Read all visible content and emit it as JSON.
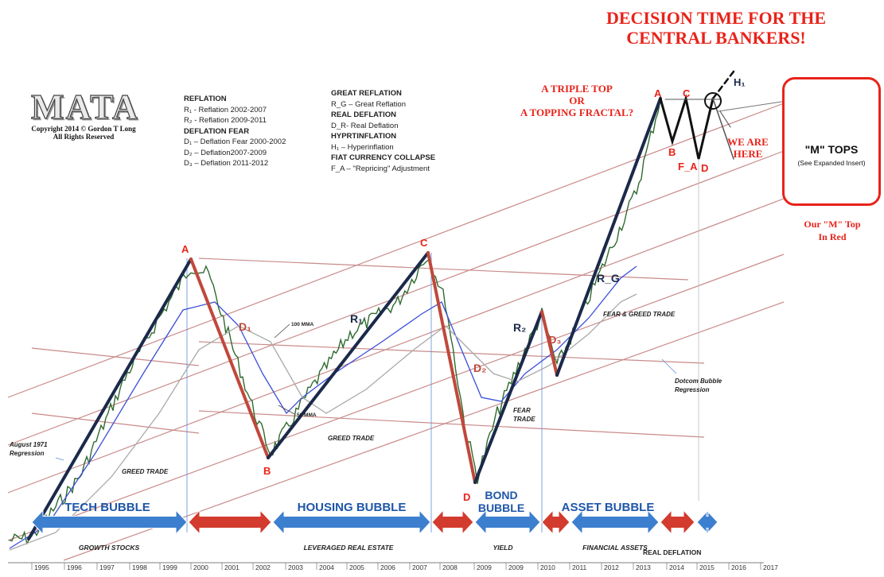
{
  "title": {
    "line1": "DECISION TIME FOR THE",
    "line2": "CENTRAL BANKERS!"
  },
  "logo": {
    "text": "MATA",
    "copyright_line1": "Copyright 2014 © Gordon T Long",
    "copyright_line2": "All Rights Reserved"
  },
  "legend_left": [
    {
      "text": "REFLATION",
      "bold": true
    },
    {
      "text": "R₁ - Reflation 2002-2007",
      "bold": false
    },
    {
      "text": "R₂ - Reflation 2009-2011",
      "bold": false
    },
    {
      "text": "DEFLATION FEAR",
      "bold": true
    },
    {
      "text": "D₁ – Deflation Fear 2000-2002",
      "bold": false
    },
    {
      "text": "D₂ – Deflation2007-2009",
      "bold": false
    },
    {
      "text": "D₃ – Deflation 2011-2012",
      "bold": false
    }
  ],
  "legend_right": [
    {
      "text": "GREAT REFLATION",
      "bold": true
    },
    {
      "text": "R_G – Great Reflation",
      "bold": false
    },
    {
      "text": "REAL DEFLATION",
      "bold": true
    },
    {
      "text": "D_R- Real Deflation",
      "bold": false
    },
    {
      "text": "HYPRTINFLATION",
      "bold": true
    },
    {
      "text": "H₁ – Hyperinflation",
      "bold": false
    },
    {
      "text": "FIAT CURRENCY COLLAPSE",
      "bold": true
    },
    {
      "text": "F_A – \"Repricing\" Adjustment",
      "bold": false
    }
  ],
  "notes": {
    "triple_top_1": "A TRIPLE TOP",
    "triple_top_2": "OR",
    "triple_top_3": "A TOPPING FRACTAL?",
    "we_are_1": "WE ARE",
    "we_are_2": "HERE"
  },
  "inset": {
    "title": "\"M\" TOPS",
    "subtitle": "(See Expanded Insert)",
    "caption_1": "Our \"M\" Top",
    "caption_2": "In Red"
  },
  "colors": {
    "accent_red": "#e8231a",
    "wave_dark": "#1b2a4a",
    "wave_red": "#c0483b",
    "ma_blue": "#3a4fd8",
    "ma_grey": "#a9a9a9",
    "channel": "#c98a8a",
    "arrow_blue": "#3d7fcf",
    "arrow_red": "#d23b2e"
  },
  "chart_data": {
    "type": "line",
    "x_ticks": [
      "1995",
      "1996",
      "1997",
      "1998",
      "1999",
      "2000",
      "2001",
      "2002",
      "2003",
      "2004",
      "2005",
      "2006",
      "2007",
      "2008",
      "2009",
      "2009",
      "2010",
      "2011",
      "2012",
      "2013",
      "2014",
      "2015",
      "2016",
      "2017"
    ],
    "pivots": [
      {
        "label": "A",
        "x": 2000.0
      },
      {
        "label": "B",
        "x": 2002.8
      },
      {
        "label": "C",
        "x": 2007.8
      },
      {
        "label": "D",
        "x": 2009.2
      },
      {
        "label": "A",
        "x": 2014.5
      },
      {
        "label": "B",
        "x": 2014.8
      },
      {
        "label": "C",
        "x": 2015.4
      },
      {
        "label": "D",
        "x": 2015.9
      }
    ],
    "wave_labels": [
      "D₁",
      "R₁",
      "D₂",
      "R₂",
      "D₃",
      "R_G",
      "F_A",
      "H₁"
    ],
    "ma_labels": [
      "100 MMA",
      "50 MMA"
    ],
    "annotations": [
      "August 1971 Regression",
      "Dotcom Bubble Regression",
      "GREED TRADE",
      "GREED TRADE",
      "FEAR & GREED TRADE",
      "FEAR TRADE"
    ],
    "bubbles": [
      {
        "label": "TECH BUBBLE",
        "sub": "GROWTH STOCKS"
      },
      {
        "label": "HOUSING BUBBLE",
        "sub": "LEVERAGED REAL ESTATE"
      },
      {
        "label": "BOND BUBBLE",
        "sub": "YIELD"
      },
      {
        "label": "ASSET BUBBLE",
        "sub": "FINANCIAL ASSETS"
      }
    ],
    "extra_labels": [
      "REAL DEFLATION"
    ]
  }
}
